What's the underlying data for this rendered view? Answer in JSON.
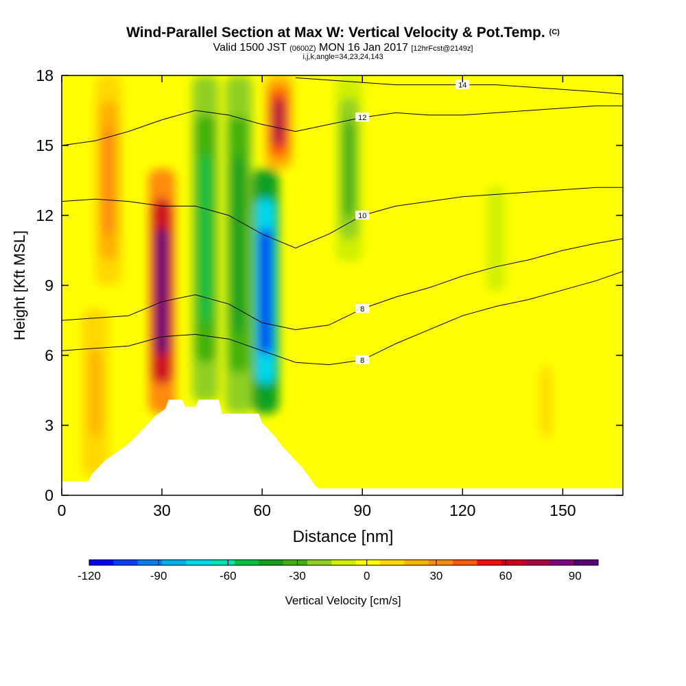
{
  "header": {
    "title": "Wind-Parallel Section at Max W: Vertical Velocity & Pot.Temp.",
    "copyright": "(C)",
    "valid_prefix": "Valid 1500 JST",
    "valid_utc": "(0600Z)",
    "valid_date": "MON 16 Jan 2017",
    "forecast": "[12hrFcst@2149z]",
    "subtitle": "i,j,k,angle=34,23,24,143"
  },
  "chart_data": {
    "type": "heatmap",
    "xlabel": "Distance [nm]",
    "ylabel": "Height [Kft MSL]",
    "xlim": [
      0,
      168
    ],
    "ylim": [
      0,
      18
    ],
    "x_ticks": [
      "0",
      "30",
      "60",
      "90",
      "120",
      "150"
    ],
    "y_ticks": [
      "0",
      "3",
      "6",
      "9",
      "12",
      "15",
      "18"
    ],
    "colorbar": {
      "label": "Vertical Velocity [cm/s]",
      "range": [
        -120,
        100
      ],
      "tick_labels": [
        "-120",
        "-90",
        "-60",
        "-30",
        "0",
        "30",
        "60",
        "90"
      ],
      "colors": [
        "#0000f0",
        "#0040f0",
        "#0080f0",
        "#00b0f0",
        "#00d8f0",
        "#00e0b0",
        "#00c040",
        "#10a020",
        "#40b010",
        "#90d020",
        "#d0f000",
        "#ffff00",
        "#ffd800",
        "#ffb000",
        "#ff8a10",
        "#ff5a00",
        "#ee1010",
        "#cc0020",
        "#aa0040",
        "#80007c",
        "#5a007a"
      ]
    },
    "velocity_features": [
      {
        "x": 10,
        "z_bottom": 0.8,
        "z_top": 8,
        "w": 20,
        "label": "weak updraft near ground"
      },
      {
        "x": 30,
        "z_bottom": 3.5,
        "z_top": 14,
        "w": 90,
        "label": "updraft core"
      },
      {
        "x": 14,
        "z_bottom": 9,
        "z_top": 18,
        "w": 30,
        "label": "upper updraft"
      },
      {
        "x": 43,
        "z_bottom": 4,
        "z_top": 18,
        "w": -50,
        "label": "downdraft band"
      },
      {
        "x": 53,
        "z_bottom": 3.5,
        "z_top": 18,
        "w": -45,
        "label": "downdraft band"
      },
      {
        "x": 61,
        "z_bottom": 3.5,
        "z_top": 14,
        "w": -115,
        "label": "downdraft core"
      },
      {
        "x": 65,
        "z_bottom": 14,
        "z_top": 18,
        "w": 70,
        "label": "upper updraft"
      },
      {
        "x": 86,
        "z_bottom": 10,
        "z_top": 18,
        "w": -30,
        "label": "upper downdraft"
      },
      {
        "x": 130,
        "z_bottom": 8,
        "z_top": 14,
        "w": -10,
        "label": "weak sink"
      },
      {
        "x": 145,
        "z_bottom": 1,
        "z_top": 7,
        "w": 8,
        "label": "weak lift"
      }
    ],
    "terrain": [
      [
        0,
        0.6
      ],
      [
        8,
        0.6
      ],
      [
        9,
        0.9
      ],
      [
        11,
        1.2
      ],
      [
        13,
        1.5
      ],
      [
        16,
        1.8
      ],
      [
        19,
        2.1
      ],
      [
        22,
        2.5
      ],
      [
        24,
        2.8
      ],
      [
        26,
        3.1
      ],
      [
        28,
        3.4
      ],
      [
        31,
        3.7
      ],
      [
        32,
        4.1
      ],
      [
        36,
        4.1
      ],
      [
        37,
        3.8
      ],
      [
        40,
        3.8
      ],
      [
        41,
        4.1
      ],
      [
        47,
        4.1
      ],
      [
        48,
        3.5
      ],
      [
        59,
        3.5
      ],
      [
        60,
        3.1
      ],
      [
        62,
        2.8
      ],
      [
        64,
        2.5
      ],
      [
        66,
        2.1
      ],
      [
        68,
        1.8
      ],
      [
        70,
        1.5
      ],
      [
        72,
        1.2
      ],
      [
        74,
        0.8
      ],
      [
        76,
        0.4
      ],
      [
        77,
        0.3
      ],
      [
        168,
        0.3
      ]
    ],
    "contours": [
      {
        "label": "8",
        "x": [
          0,
          10,
          20,
          30,
          40,
          50,
          60,
          70,
          80,
          90,
          100,
          110,
          120,
          130,
          140,
          150,
          160,
          168
        ],
        "z": [
          6.2,
          6.3,
          6.4,
          6.8,
          6.9,
          6.7,
          6.2,
          5.7,
          5.6,
          5.8,
          6.5,
          7.1,
          7.7,
          8.1,
          8.4,
          8.8,
          9.2,
          9.6
        ]
      },
      {
        "label": "8",
        "x": [
          0,
          10,
          20,
          30,
          40,
          50,
          60,
          70,
          80,
          90,
          100,
          110,
          120,
          130,
          140,
          150,
          160,
          168
        ],
        "z": [
          7.5,
          7.6,
          7.7,
          8.3,
          8.6,
          8.2,
          7.4,
          7.1,
          7.3,
          8.0,
          8.5,
          8.9,
          9.4,
          9.8,
          10.1,
          10.5,
          10.8,
          11.0
        ]
      },
      {
        "label": "10",
        "x": [
          0,
          10,
          20,
          30,
          40,
          50,
          60,
          70,
          80,
          90,
          100,
          110,
          120,
          130,
          140,
          150,
          160,
          168
        ],
        "z": [
          12.6,
          12.7,
          12.6,
          12.4,
          12.4,
          12.0,
          11.2,
          10.6,
          11.2,
          12.0,
          12.4,
          12.6,
          12.8,
          12.9,
          13.0,
          13.1,
          13.2,
          13.2
        ]
      },
      {
        "label": "12",
        "x": [
          0,
          10,
          20,
          30,
          40,
          50,
          60,
          70,
          80,
          90,
          100,
          110,
          120,
          130,
          140,
          150,
          160,
          168
        ],
        "z": [
          15.0,
          15.2,
          15.6,
          16.1,
          16.5,
          16.3,
          15.9,
          15.6,
          15.9,
          16.2,
          16.4,
          16.3,
          16.3,
          16.4,
          16.5,
          16.6,
          16.7,
          16.7
        ]
      },
      {
        "label": "14",
        "x": [
          70,
          80,
          90,
          100,
          110,
          120,
          130,
          140,
          150,
          160,
          168
        ],
        "z": [
          17.9,
          17.8,
          17.7,
          17.6,
          17.6,
          17.6,
          17.6,
          17.5,
          17.4,
          17.3,
          17.2
        ]
      }
    ]
  }
}
